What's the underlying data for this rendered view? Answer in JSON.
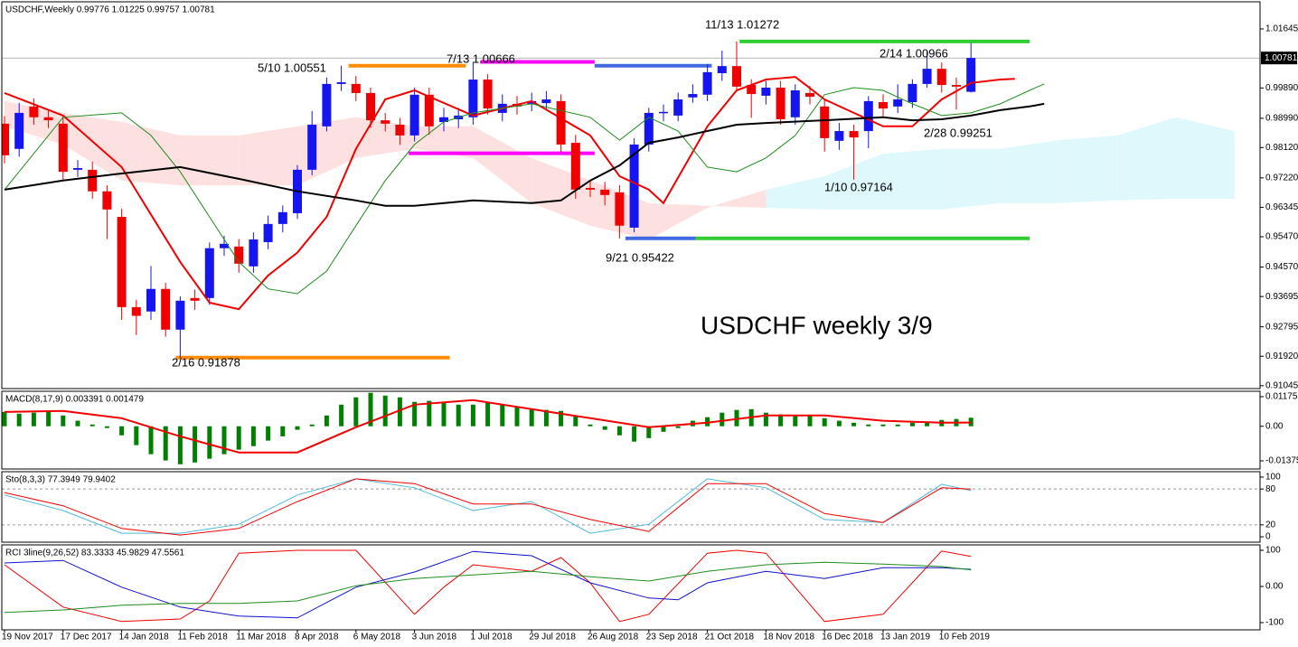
{
  "chart_data": [
    {
      "type": "candlestick",
      "title": "USDCHF,Weekly  0.99776 1.01225 0.99757 1.00781",
      "annotation_title": "USDCHF weekly 3/9",
      "categories": [
        "19 Nov 2017",
        null,
        null,
        null,
        "17 Dec 2017",
        null,
        null,
        null,
        "14 Jan 2018",
        null,
        null,
        null,
        "11 Feb 2018",
        null,
        null,
        null,
        "11 Mar 2018",
        null,
        null,
        null,
        "8 Apr 2018",
        null,
        null,
        null,
        "6 May 2018",
        null,
        null,
        null,
        "3 Jun 2018",
        null,
        null,
        null,
        "1 Jul 2018",
        null,
        null,
        null,
        "29 Jul 2018",
        null,
        null,
        null,
        "26 Aug 2018",
        null,
        null,
        null,
        "23 Sep 2018",
        null,
        null,
        null,
        "21 Oct 2018",
        null,
        null,
        null,
        "18 Nov 2018",
        null,
        null,
        null,
        "16 Dec 2018",
        null,
        null,
        null,
        "13 Jan 2019",
        null,
        null,
        null,
        "10 Feb 2019",
        null,
        null
      ],
      "candles": {
        "open": [
          0.9883,
          0.9808,
          0.9934,
          0.9902,
          0.9883,
          0.9746,
          0.9746,
          0.9682,
          0.9606,
          0.9338,
          0.9325,
          0.9392,
          0.9271,
          0.9365,
          0.9365,
          0.9513,
          0.9518,
          0.9459,
          0.9531,
          0.9585,
          0.9617,
          0.9746,
          0.9875,
          1.0001,
          1.0001,
          0.9974,
          0.9893,
          0.988,
          0.9848,
          0.9969,
          0.9888,
          0.9896,
          0.9902,
          1.0014,
          0.9915,
          0.9942,
          0.9942,
          0.9944,
          0.995,
          0.9826,
          0.9692,
          0.9687,
          0.9679,
          0.9574,
          0.9821,
          0.9915,
          0.9907,
          0.9961,
          0.9969,
          1.0033,
          1.0054,
          0.9998,
          0.9966,
          0.999,
          0.9902,
          0.9974,
          0.9934,
          0.9832,
          0.9861,
          0.9861,
          0.9947,
          0.9934,
          0.9947,
          1.0001,
          1.0046,
          0.9998,
          0.99776
        ],
        "high": [
          0.9905,
          0.9945,
          0.9958,
          0.9925,
          0.9905,
          0.9775,
          0.977,
          0.97,
          0.963,
          0.936,
          0.946,
          0.941,
          0.937,
          0.939,
          0.953,
          0.955,
          0.954,
          0.956,
          0.961,
          0.964,
          0.976,
          0.992,
          1.002,
          1.00551,
          1.0025,
          0.999,
          0.9915,
          0.99,
          0.999,
          0.999,
          0.993,
          0.993,
          1.00666,
          1.003,
          0.997,
          0.9965,
          0.9975,
          0.998,
          0.997,
          0.985,
          0.9715,
          0.971,
          0.97,
          0.984,
          0.993,
          0.994,
          0.9975,
          1.0,
          1.006,
          1.01,
          1.01272,
          1.0015,
          1.001,
          1.001,
          1.0,
          0.9995,
          0.9955,
          0.9885,
          0.988,
          0.9965,
          0.997,
          1.0,
          1.0015,
          1.00966,
          1.0065,
          1.002,
          1.01225
        ],
        "low": [
          0.9765,
          0.9785,
          0.988,
          0.987,
          0.9715,
          0.9725,
          0.966,
          0.954,
          0.93,
          0.9255,
          0.93,
          0.925,
          0.91878,
          0.933,
          0.9345,
          0.949,
          0.944,
          0.944,
          0.951,
          0.956,
          0.96,
          0.973,
          0.986,
          0.998,
          0.995,
          0.987,
          0.986,
          0.982,
          0.983,
          0.985,
          0.986,
          0.987,
          0.988,
          0.991,
          0.989,
          0.991,
          0.992,
          0.9925,
          0.98,
          0.966,
          0.9665,
          0.964,
          0.95422,
          0.956,
          0.98,
          0.989,
          0.989,
          0.9945,
          0.995,
          1.001,
          0.998,
          0.99,
          0.994,
          0.988,
          0.988,
          0.994,
          0.98,
          0.9805,
          0.97164,
          0.981,
          0.9905,
          0.9915,
          0.993,
          0.999,
          0.9975,
          0.99251,
          0.99757
        ],
        "close": [
          0.9789,
          0.9915,
          0.9902,
          0.9893,
          0.974,
          0.9751,
          0.9682,
          0.9628,
          0.9338,
          0.9312,
          0.9392,
          0.9271,
          0.9357,
          0.9357,
          0.9513,
          0.9526,
          0.9467,
          0.9539,
          0.9585,
          0.962,
          0.9746,
          0.988,
          1.0001,
          1.0006,
          0.9974,
          0.9893,
          0.9883,
          0.9848,
          0.9969,
          0.9875,
          0.9902,
          0.9907,
          1.0014,
          0.9928,
          0.9942,
          0.9934,
          0.995,
          0.9955,
          0.9821,
          0.9687,
          0.9687,
          0.9671,
          0.958,
          0.9821,
          0.9915,
          0.9918,
          0.9955,
          0.9971,
          1.0036,
          1.0054,
          0.9993,
          0.9971,
          0.999,
          0.9896,
          0.9982,
          0.9963,
          0.984,
          0.9861,
          0.9842,
          0.995,
          0.9928,
          0.9955,
          1.0001,
          1.0046,
          0.9998,
          0.9993,
          1.00781
        ]
      },
      "up_color": "#1515f0",
      "down_color": "#f00000",
      "ylim": [
        0.9096,
        1.0245
      ],
      "yticks": [
        1.01645,
        {
          "value": 0.9989,
          "label": "0.99890"
        },
        {
          "value": 0.9899,
          "label": "0.98990"
        },
        {
          "value": 0.9812,
          "label": "0.98120"
        },
        {
          "value": 0.9722,
          "label": "0.97220"
        },
        0.96345,
        {
          "value": 0.9547,
          "label": "0.95470"
        },
        {
          "value": 0.9457,
          "label": "0.94570"
        },
        0.93695,
        0.92795,
        {
          "value": 0.9192,
          "label": "0.91920"
        },
        0.91045
      ],
      "last_price": 1.00781,
      "lines": [
        {
          "color": "#f00000",
          "width": 2,
          "x": [
            0,
            4,
            8,
            12,
            14,
            16,
            18,
            20,
            22,
            24,
            26,
            28,
            32,
            36,
            40,
            42,
            44,
            45,
            48,
            50,
            52,
            54,
            56,
            58,
            60,
            62,
            64,
            66,
            68,
            69
          ],
          "values": [
            0.9974,
            0.9907,
            0.9754,
            0.9472,
            0.9351,
            0.9332,
            0.9432,
            0.95,
            0.9606,
            0.9808,
            0.9955,
            0.9982,
            0.9907,
            0.995,
            0.9848,
            0.9727,
            0.9687,
            0.9647,
            0.9875,
            0.9982,
            1.0014,
            1.0022,
            0.9955,
            0.9915,
            0.9875,
            0.9875,
            0.9955,
            1.0004,
            1.0014,
            1.0016
          ]
        },
        {
          "color": "#1e8c1e",
          "width": 1,
          "x": [
            0,
            4,
            8,
            10,
            12,
            14,
            16,
            18,
            20,
            22,
            24,
            26,
            28,
            30,
            32,
            36,
            40,
            42,
            44,
            46,
            48,
            50,
            52,
            54,
            56,
            58,
            60,
            62,
            64,
            66,
            68,
            70,
            71
          ],
          "values": [
            0.9687,
            0.9902,
            0.9915,
            0.9848,
            0.974,
            0.9606,
            0.9472,
            0.9392,
            0.9378,
            0.9445,
            0.958,
            0.9714,
            0.9821,
            0.9888,
            0.9915,
            0.9942,
            0.9902,
            0.9834,
            0.9902,
            0.9861,
            0.9754,
            0.974,
            0.9781,
            0.9848,
            0.9969,
            0.999,
            0.9982,
            0.9942,
            0.9907,
            0.9915,
            0.9942,
            0.9982,
            1.0001
          ]
        },
        {
          "color": "#000000",
          "width": 2,
          "x": [
            0,
            4,
            8,
            12,
            16,
            20,
            24,
            26,
            28,
            32,
            36,
            38,
            40,
            42,
            44,
            46,
            48,
            50,
            52,
            56,
            60,
            62,
            64,
            66,
            68,
            70,
            71
          ],
          "values": [
            0.9687,
            0.9714,
            0.9735,
            0.9754,
            0.9719,
            0.9682,
            0.9655,
            0.9639,
            0.9639,
            0.9655,
            0.9647,
            0.9655,
            0.9714,
            0.9759,
            0.9826,
            0.9842,
            0.9861,
            0.988,
            0.9885,
            0.9893,
            0.9902,
            0.9893,
            0.9896,
            0.9907,
            0.9923,
            0.9934,
            0.9942
          ]
        }
      ],
      "cloud": {
        "x": [
          0,
          4,
          8,
          12,
          16,
          20,
          24,
          28,
          32,
          36,
          40,
          44,
          48,
          52,
          56,
          60,
          64,
          68,
          72,
          76,
          80,
          84
        ],
        "span_a": [
          0.9875,
          0.9821,
          0.9714,
          0.97,
          0.97,
          0.97,
          0.9781,
          0.9808,
          0.9781,
          0.9647,
          0.958,
          0.9539,
          0.9633,
          0.9687,
          0.9727,
          0.9794,
          0.9808,
          0.9808,
          0.9834,
          0.9848,
          0.9902,
          0.9861
        ],
        "span_b": [
          0.995,
          0.9915,
          0.9888,
          0.9848,
          0.9848,
          0.9875,
          0.9902,
          0.9875,
          0.9875,
          0.9781,
          0.9714,
          0.9647,
          0.9639,
          0.9633,
          0.9628,
          0.9628,
          0.9628,
          0.9647,
          0.9647,
          0.9655,
          0.966,
          0.966
        ],
        "up_color": "#dff8fb",
        "down_color": "#fde0e0"
      },
      "levels": [
        {
          "value": 1.00551,
          "start": 23.5,
          "end": 31.5,
          "color": "#ff8c00"
        },
        {
          "value": 1.00666,
          "start": 32.5,
          "end": 40.3,
          "color": "#ff00ff"
        },
        {
          "value": 1.00551,
          "start": 40.3,
          "end": 48.3,
          "color": "#4169e1"
        },
        {
          "value": 0.9795,
          "start": 27.6,
          "end": 40.3,
          "color": "#ff00ff"
        },
        {
          "value": 1.01272,
          "start": 50.2,
          "end": 70,
          "color": "#32cd32"
        },
        {
          "value": 0.95422,
          "start": 42.4,
          "end": 47.2,
          "color": "#4169e1"
        },
        {
          "value": 0.95422,
          "start": 47.2,
          "end": 70,
          "color": "#32cd32"
        },
        {
          "value": 0.91878,
          "start": 11.7,
          "end": 30.4,
          "color": "#ff8c00"
        }
      ],
      "annotations": [
        "5/10 1.00551",
        "7/13 1.00666",
        "11/13 1.01272",
        "2/14 1.00966",
        "9/21 0.95422",
        "2/16 0.91878",
        "1/10 0.97164",
        "2/28 0.99251"
      ]
    },
    {
      "type": "macd",
      "title": "MACD(8,17,9) 0.003391 0.001479",
      "ylim": [
        -0.01698,
        0.01391
      ],
      "yticks": [
        0.011752,
        {
          "value": 0,
          "label": "0.00"
        },
        -0.013751
      ],
      "hist_color": "#008000",
      "values": [
        0.0057,
        0.005,
        0.0054,
        0.0057,
        0.0043,
        0.0022,
        0.0007,
        -0.0007,
        -0.0036,
        -0.0075,
        -0.0111,
        -0.0136,
        -0.0151,
        -0.0144,
        -0.0129,
        -0.0111,
        -0.0093,
        -0.0079,
        -0.0057,
        -0.004,
        -0.0014,
        0.0007,
        0.0043,
        0.0086,
        0.0115,
        0.0133,
        0.0122,
        0.0115,
        0.0097,
        0.0101,
        0.0093,
        0.0086,
        0.0086,
        0.0093,
        0.0086,
        0.0075,
        0.0068,
        0.0065,
        0.0061,
        0.0043,
        0.0007,
        -0.0014,
        -0.0036,
        -0.0061,
        -0.0047,
        -0.0022,
        -0.0007,
        0.0022,
        0.0036,
        0.0054,
        0.0065,
        0.0068,
        0.0054,
        0.0047,
        0.004,
        0.0043,
        0.0032,
        0.0022,
        0.0014,
        0.0007,
        0.0007,
        0.0007,
        0.0014,
        0.0018,
        0.0025,
        0.0029,
        0.003391
      ],
      "lines": [
        {
          "color": "#f00000",
          "width": 2,
          "x": [
            0,
            4,
            8,
            12,
            16,
            20,
            24,
            28,
            32,
            36,
            40,
            44,
            48,
            52,
            56,
            60,
            64,
            66
          ],
          "values": [
            0.0057,
            0.0061,
            0.0032,
            -0.004,
            -0.0104,
            -0.0104,
            -0.0004,
            0.0086,
            0.0104,
            0.0068,
            0.0032,
            -0.0004,
            0.0014,
            0.0043,
            0.0043,
            0.0022,
            0.0014,
            0.001479
          ]
        }
      ]
    },
    {
      "type": "line",
      "title": "Sto(8,3,3) 77.3949 79.9402",
      "ylim": [
        -9,
        109
      ],
      "yticks": [
        100,
        80,
        20,
        0
      ],
      "levels": [
        80,
        20
      ],
      "lines": [
        {
          "color": "#4fb8d8",
          "width": 1,
          "x": [
            0,
            4,
            8,
            12,
            16,
            20,
            24,
            28,
            32,
            36,
            40,
            44,
            48,
            52,
            56,
            60,
            64,
            66
          ],
          "values": [
            70,
            44,
            6,
            6,
            21,
            70,
            97,
            82,
            44,
            59,
            6,
            21,
            97,
            82,
            29,
            24,
            88,
            77.3949
          ]
        },
        {
          "color": "#f00000",
          "width": 1,
          "x": [
            0,
            4,
            8,
            12,
            16,
            20,
            24,
            28,
            32,
            36,
            40,
            44,
            48,
            52,
            56,
            60,
            64,
            66
          ],
          "values": [
            74,
            52,
            14,
            3,
            14,
            59,
            97,
            89,
            55,
            55,
            29,
            9,
            89,
            89,
            39,
            24,
            82,
            79.9402
          ]
        }
      ]
    },
    {
      "type": "line",
      "title": "RCI 3line(9,26,52) 83.3333 45.9829 47.5561",
      "ylim": [
        -120,
        115
      ],
      "yticks": [
        100,
        {
          "value": 0,
          "label": "0.00"
        },
        -100
      ],
      "levels": [],
      "lines": [
        {
          "color": "#f00000",
          "width": 1,
          "x": [
            0,
            4,
            8,
            12,
            14,
            16,
            20,
            24,
            28,
            30,
            32,
            36,
            38,
            40,
            42,
            44,
            48,
            50,
            52,
            56,
            60,
            64,
            66
          ],
          "values": [
            60,
            -57,
            -97,
            -90,
            -40,
            92,
            100,
            100,
            -77,
            -2,
            60,
            42,
            80,
            10,
            -97,
            -77,
            92,
            100,
            92,
            -97,
            -77,
            98,
            83.3333
          ]
        },
        {
          "color": "#1010c8",
          "width": 1,
          "x": [
            0,
            4,
            8,
            12,
            16,
            20,
            24,
            28,
            32,
            36,
            40,
            44,
            46,
            48,
            52,
            56,
            60,
            64,
            66
          ],
          "values": [
            65,
            72,
            -2,
            -57,
            -82,
            -87,
            -2,
            40,
            97,
            85,
            10,
            -32,
            -37,
            10,
            42,
            22,
            52,
            52,
            47.5561
          ]
        },
        {
          "color": "#1e8c1e",
          "width": 1,
          "x": [
            0,
            4,
            8,
            12,
            16,
            20,
            24,
            28,
            32,
            36,
            40,
            44,
            48,
            52,
            56,
            60,
            64,
            66
          ],
          "values": [
            -72,
            -65,
            -52,
            -47,
            -47,
            -40,
            2,
            22,
            32,
            42,
            27,
            15,
            42,
            60,
            67,
            62,
            55,
            45.9829
          ]
        }
      ]
    }
  ]
}
